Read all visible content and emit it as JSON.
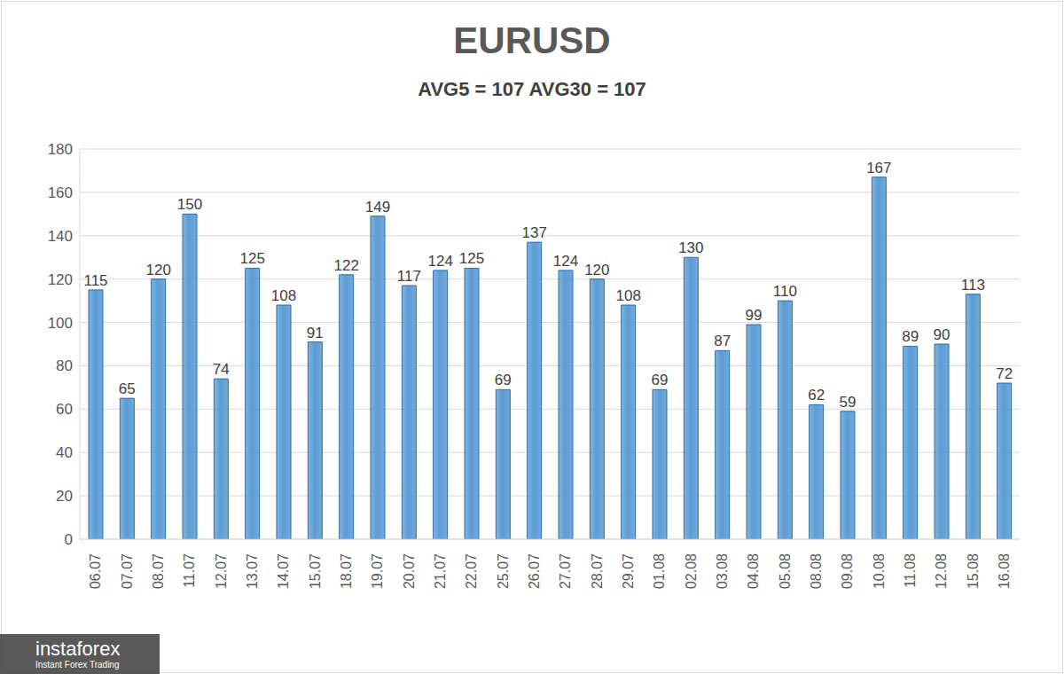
{
  "chart_data": {
    "type": "bar",
    "title": "EURUSD",
    "subtitle": "AVG5 = 107 AVG30 = 107",
    "categories": [
      "06.07",
      "07.07",
      "08.07",
      "11.07",
      "12.07",
      "13.07",
      "14.07",
      "15.07",
      "18.07",
      "19.07",
      "20.07",
      "21.07",
      "22.07",
      "25.07",
      "26.07",
      "27.07",
      "28.07",
      "29.07",
      "01.08",
      "02.08",
      "03.08",
      "04.08",
      "05.08",
      "08.08",
      "09.08",
      "10.08",
      "11.08",
      "12.08",
      "15.08",
      "16.08"
    ],
    "values": [
      115,
      65,
      120,
      150,
      74,
      125,
      108,
      91,
      122,
      149,
      117,
      124,
      125,
      69,
      137,
      124,
      120,
      108,
      69,
      130,
      87,
      99,
      110,
      62,
      59,
      167,
      89,
      90,
      113,
      72
    ],
    "color": "#5b9bd5",
    "ylim": [
      0,
      180
    ],
    "yticks": [
      0,
      20,
      40,
      60,
      80,
      100,
      120,
      140,
      160,
      180
    ],
    "grid": true,
    "data_labels": true,
    "annotations": [
      "instaforex",
      "Instant Forex Trading"
    ]
  }
}
